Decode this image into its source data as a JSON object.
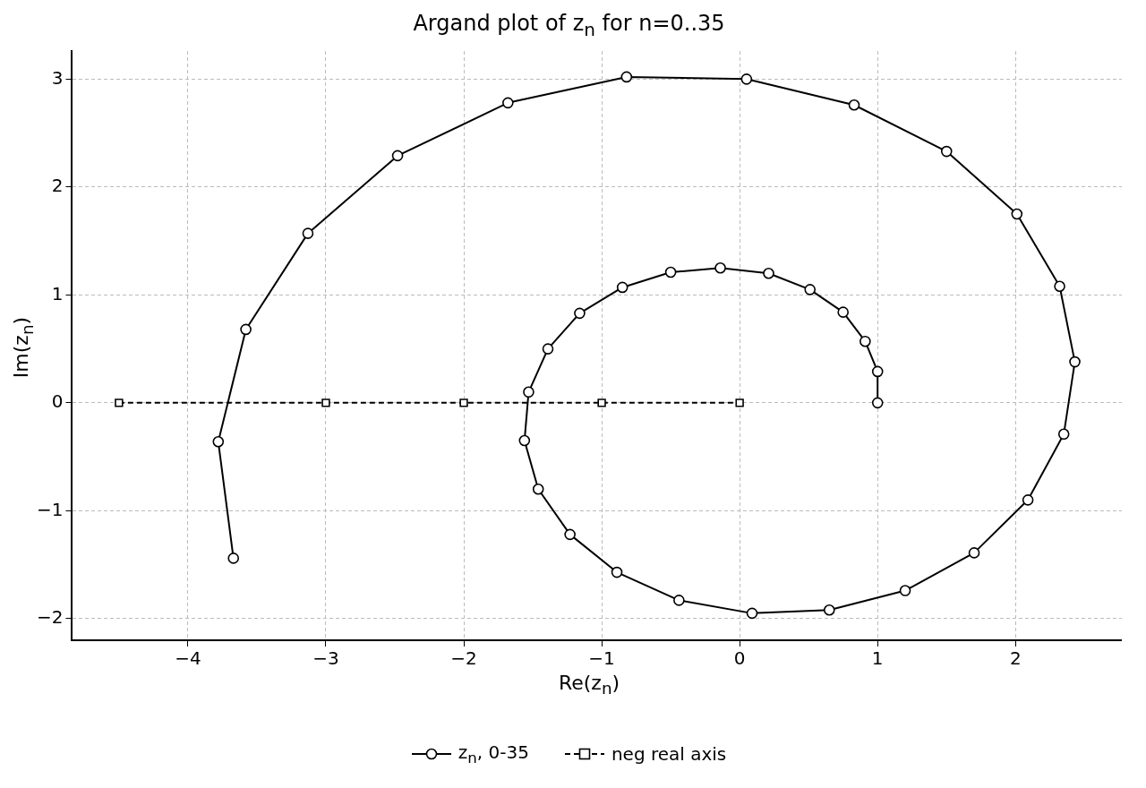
{
  "chart_data": {
    "type": "line",
    "title": "Argand plot of z$_{n}$ for n=0..35",
    "xlabel": "Re(z$_{n}$)",
    "ylabel": "Im(z$_{n}$)",
    "xlim": [
      -4.84,
      2.77
    ],
    "ylim": [
      -2.2,
      3.26
    ],
    "xticks": [
      -4,
      -3,
      -2,
      -1,
      0,
      1,
      2
    ],
    "yticks": [
      -2,
      -1,
      0,
      1,
      2,
      3
    ],
    "grid": true,
    "legend": "bottom",
    "series": [
      {
        "name": "z$_{n}$, 0-35",
        "color": "#000000",
        "marker": "circle",
        "line_style": "solid",
        "x": [
          1,
          1,
          0.91,
          0.75,
          0.51,
          0.21,
          -0.14,
          -0.5,
          -0.85,
          -1.16,
          -1.39,
          -1.53,
          -1.56,
          -1.46,
          -1.23,
          -0.89,
          -0.44,
          0.09,
          0.65,
          1.2,
          1.7,
          2.09,
          2.35,
          2.43,
          2.32,
          2.01,
          1.5,
          0.83,
          0.05,
          -0.82,
          -1.68,
          -2.48,
          -3.13,
          -3.58,
          -3.78,
          -3.67
        ],
        "values": [
          0,
          0.29,
          0.57,
          0.84,
          1.05,
          1.2,
          1.25,
          1.21,
          1.07,
          0.83,
          0.5,
          0.1,
          -0.35,
          -0.8,
          -1.22,
          -1.57,
          -1.83,
          -1.95,
          -1.92,
          -1.74,
          -1.39,
          -0.9,
          -0.29,
          0.38,
          1.08,
          1.75,
          2.33,
          2.76,
          3,
          3.02,
          2.78,
          2.29,
          1.57,
          0.68,
          -0.36,
          -1.44
        ]
      },
      {
        "name": "neg real axis",
        "color": "#000000",
        "marker": "square",
        "line_style": "dashed",
        "x": [
          -4.5,
          -3,
          -2,
          -1,
          0
        ],
        "values": [
          0,
          0,
          0,
          0,
          0
        ]
      }
    ]
  }
}
